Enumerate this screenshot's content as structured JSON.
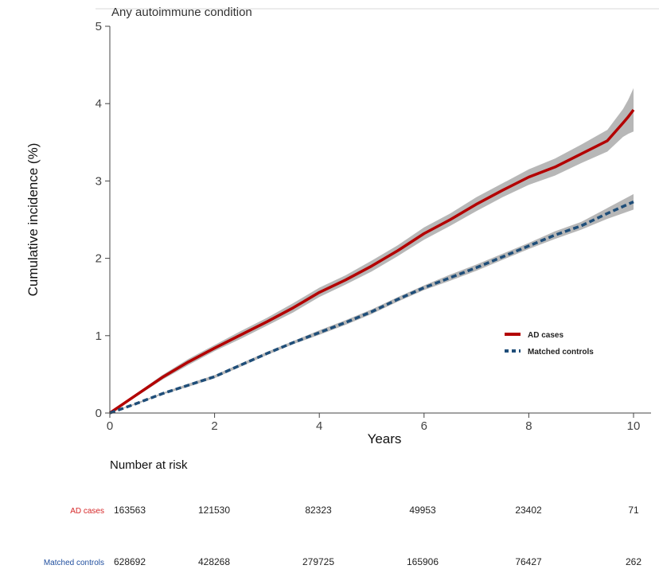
{
  "chart_data": {
    "type": "line",
    "title": "Any autoimmune condition",
    "xlabel": "Years",
    "ylabel": "Cumulative incidence (%)",
    "xlim": [
      0,
      10
    ],
    "ylim": [
      0,
      5
    ],
    "xticks": [
      0,
      2,
      4,
      6,
      8,
      10
    ],
    "yticks": [
      0,
      1,
      2,
      3,
      4,
      5
    ],
    "grid": false,
    "legend_position": "right",
    "series": [
      {
        "name": "AD cases",
        "color": "#b30000",
        "style": "solid",
        "ci_color": "#b3b3b3",
        "x": [
          0,
          0.5,
          1,
          1.5,
          2,
          2.5,
          3,
          3.5,
          4,
          4.5,
          5,
          5.5,
          6,
          6.5,
          7,
          7.5,
          8,
          8.5,
          9,
          9.5,
          9.8,
          9.9,
          10
        ],
        "y": [
          0,
          0.23,
          0.46,
          0.66,
          0.84,
          1.01,
          1.18,
          1.36,
          1.56,
          1.72,
          1.9,
          2.1,
          2.32,
          2.5,
          2.7,
          2.88,
          3.05,
          3.18,
          3.35,
          3.52,
          3.75,
          3.83,
          3.92
        ],
        "ci_width": [
          0,
          0.02,
          0.03,
          0.04,
          0.04,
          0.05,
          0.05,
          0.06,
          0.06,
          0.06,
          0.07,
          0.07,
          0.08,
          0.08,
          0.09,
          0.09,
          0.1,
          0.11,
          0.12,
          0.14,
          0.18,
          0.22,
          0.28
        ]
      },
      {
        "name": "Matched controls",
        "color": "#1f4e79",
        "style": "dashed",
        "ci_color": "#b3b3b3",
        "x": [
          0,
          0.5,
          1,
          1.5,
          2,
          2.5,
          3,
          3.5,
          4,
          4.5,
          5,
          5.5,
          6,
          6.5,
          7,
          7.5,
          8,
          8.5,
          9,
          9.5,
          10
        ],
        "y": [
          0,
          0.12,
          0.25,
          0.36,
          0.47,
          0.62,
          0.77,
          0.91,
          1.04,
          1.17,
          1.31,
          1.47,
          1.62,
          1.75,
          1.88,
          2.02,
          2.16,
          2.3,
          2.42,
          2.58,
          2.73
        ],
        "ci_width": [
          0,
          0.01,
          0.01,
          0.02,
          0.02,
          0.02,
          0.02,
          0.02,
          0.03,
          0.03,
          0.03,
          0.03,
          0.03,
          0.04,
          0.04,
          0.04,
          0.04,
          0.05,
          0.05,
          0.07,
          0.1
        ]
      }
    ],
    "risk_table": {
      "title": "Number at risk",
      "times": [
        0,
        2,
        4,
        6,
        8,
        10
      ],
      "rows": [
        {
          "label": "AD cases",
          "color": "#d62728",
          "values": [
            "163563",
            "121530",
            "82323",
            "49953",
            "23402",
            "71"
          ]
        },
        {
          "label": "Matched controls",
          "color": "#1f4e9e",
          "values": [
            "628692",
            "428268",
            "279725",
            "165906",
            "76427",
            "262"
          ]
        }
      ]
    }
  }
}
